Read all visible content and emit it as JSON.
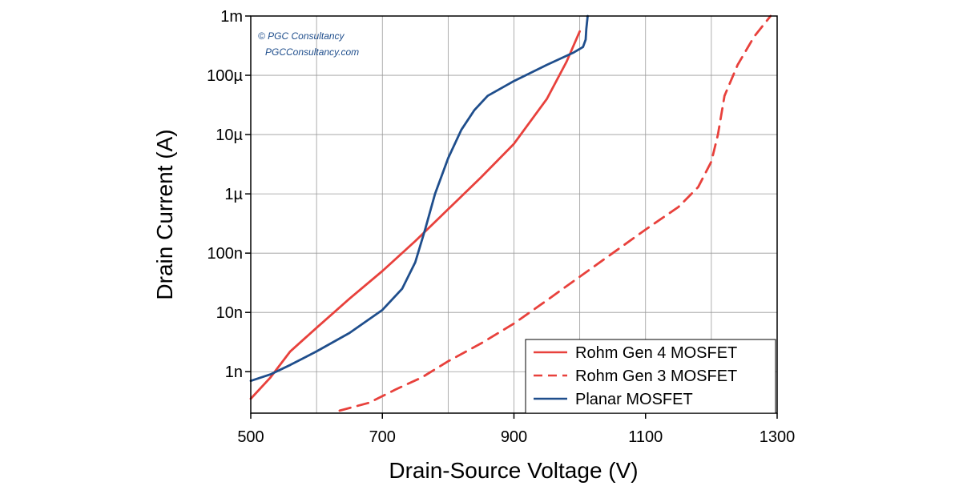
{
  "chart_data": {
    "type": "line",
    "xlabel": "Drain-Source Voltage (V)",
    "ylabel": "Drain Current (A)",
    "xlim": [
      500,
      1300
    ],
    "ylim": [
      2e-10,
      0.001
    ],
    "yscale": "log",
    "grid": true,
    "x_ticks": [
      500,
      700,
      900,
      1100,
      1300
    ],
    "x_tick_labels": [
      "500",
      "700",
      "900",
      "1100",
      "1300"
    ],
    "y_ticks": [
      1e-09,
      1e-08,
      1e-07,
      1e-06,
      1e-05,
      0.0001,
      0.001
    ],
    "y_tick_labels": [
      "1n",
      "10n",
      "100n",
      "1µ",
      "10µ",
      "100µ",
      "1m"
    ],
    "watermark": [
      "© PGC Consultancy",
      "PGCConsultancy.com"
    ],
    "legend_position": "bottom-right",
    "series": [
      {
        "name": "Rohm Gen 4 MOSFET",
        "color": "#e8413c",
        "style": "solid",
        "x": [
          500,
          530,
          560,
          600,
          650,
          700,
          750,
          800,
          850,
          900,
          950,
          980,
          1000
        ],
        "y": [
          3.5e-10,
          8e-10,
          2.2e-09,
          5.5e-09,
          1.7e-08,
          5e-08,
          1.6e-07,
          5.5e-07,
          1.9e-06,
          7e-06,
          4e-05,
          0.00017,
          0.00055
        ]
      },
      {
        "name": "Rohm Gen 3 MOSFET",
        "color": "#e8413c",
        "style": "dashed",
        "x": [
          635,
          680,
          720,
          760,
          800,
          850,
          900,
          950,
          1000,
          1050,
          1100,
          1150,
          1180,
          1200,
          1210,
          1220,
          1240,
          1265,
          1290
        ],
        "y": [
          2.2e-10,
          3e-10,
          5e-10,
          8e-10,
          1.5e-09,
          3e-09,
          6.5e-09,
          1.6e-08,
          4e-08,
          1e-07,
          2.5e-07,
          6e-07,
          1.3e-06,
          3.5e-06,
          1e-05,
          4.5e-05,
          0.00015,
          0.00045,
          0.001
        ]
      },
      {
        "name": "Planar MOSFET",
        "color": "#1f4e8c",
        "style": "solid",
        "x": [
          500,
          530,
          560,
          600,
          650,
          700,
          730,
          750,
          765,
          780,
          800,
          820,
          840,
          860,
          900,
          950,
          990,
          1005,
          1009,
          1010,
          1012
        ],
        "y": [
          7e-10,
          9e-10,
          1.3e-09,
          2.2e-09,
          4.5e-09,
          1.1e-08,
          2.5e-08,
          7e-08,
          2.5e-07,
          1e-06,
          4e-06,
          1.2e-05,
          2.6e-05,
          4.5e-05,
          8e-05,
          0.00015,
          0.00024,
          0.0003,
          0.0004,
          0.0006,
          0.001
        ]
      }
    ]
  }
}
